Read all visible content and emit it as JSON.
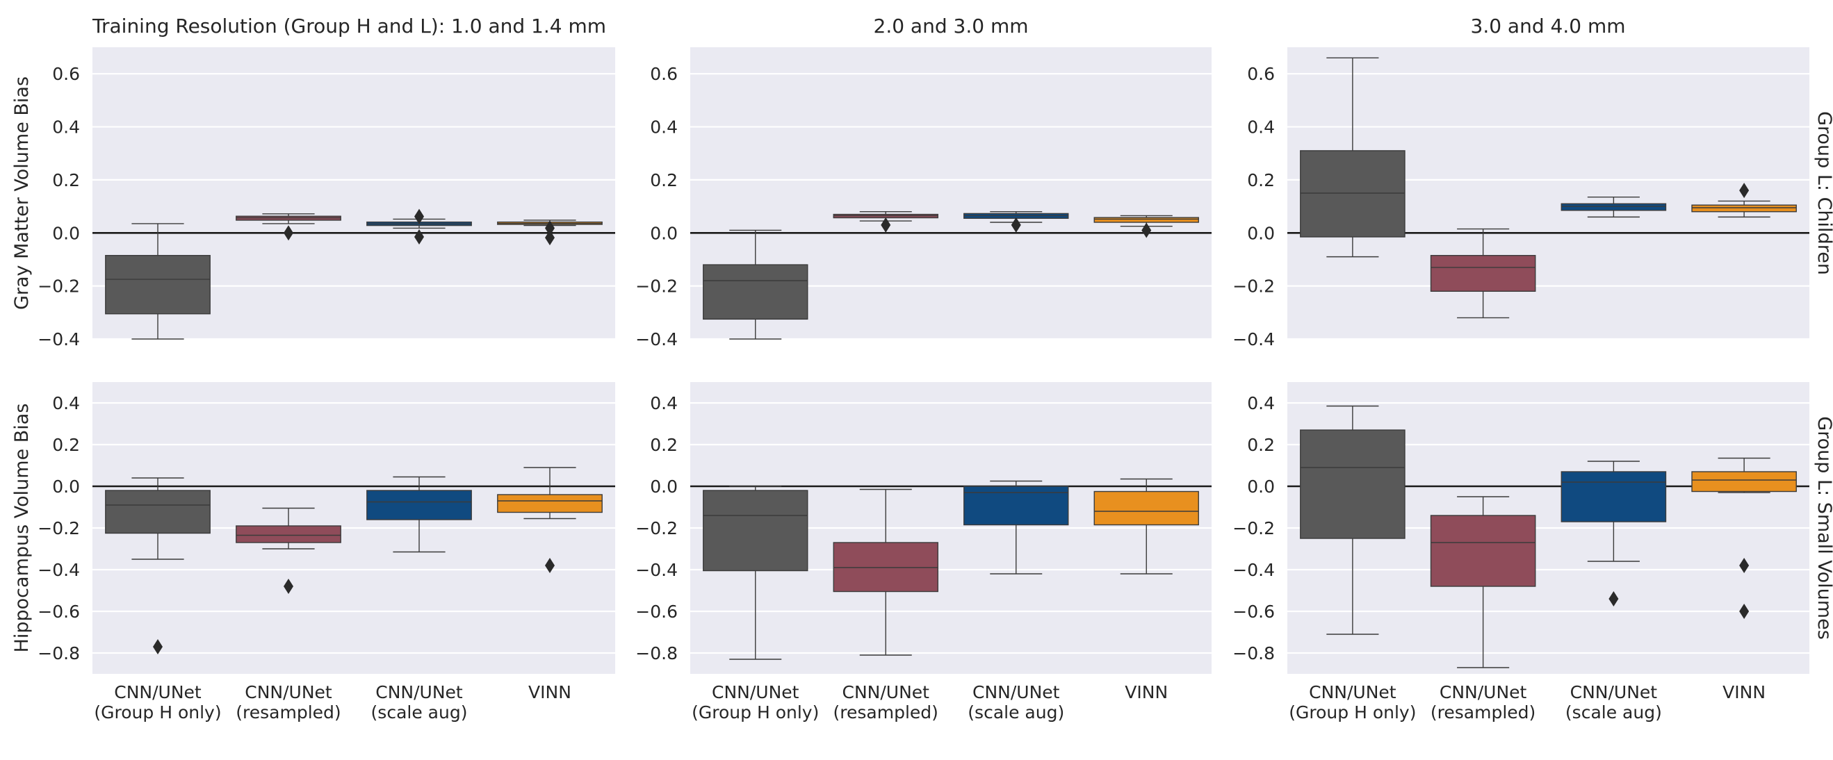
{
  "chart_data": {
    "type": "box",
    "columns": [
      "Training Resolution (Group H and L): 1.0 and 1.4 mm",
      "2.0 and 3.0 mm",
      "3.0 and 4.0 mm"
    ],
    "rows": [
      "Group L: Children",
      "Group L: Small Volumes"
    ],
    "row_ylabels": [
      "Gray Matter Volume Bias",
      "Hippocampus Volume Bias"
    ],
    "categories": [
      {
        "line1": "CNN/UNet",
        "line2": "(Group H only)"
      },
      {
        "line1": "CNN/UNet",
        "line2": "(resampled)"
      },
      {
        "line1": "CNN/UNet",
        "line2": "(scale aug)"
      },
      {
        "line1": "VINN",
        "line2": ""
      }
    ],
    "colors": [
      "#595959",
      "#8f4c5a",
      "#104a80",
      "#e8901f"
    ],
    "background_color": "#eaeaf2",
    "grid": true,
    "zero_line": true,
    "ylim_rows": [
      [
        -0.4,
        0.7
      ],
      [
        -0.9,
        0.5
      ]
    ],
    "yticks_rows": [
      [
        {
          "v": -0.4,
          "t": "−0.4"
        },
        {
          "v": -0.2,
          "t": "−0.2"
        },
        {
          "v": 0.0,
          "t": "0.0"
        },
        {
          "v": 0.2,
          "t": "0.2"
        },
        {
          "v": 0.4,
          "t": "0.4"
        },
        {
          "v": 0.6,
          "t": "0.6"
        }
      ],
      [
        {
          "v": -0.8,
          "t": "−0.8"
        },
        {
          "v": -0.6,
          "t": "−0.6"
        },
        {
          "v": -0.4,
          "t": "−0.4"
        },
        {
          "v": -0.2,
          "t": "−0.2"
        },
        {
          "v": 0.0,
          "t": "0.0"
        },
        {
          "v": 0.2,
          "t": "0.2"
        },
        {
          "v": 0.4,
          "t": "0.4"
        }
      ]
    ],
    "panels": [
      {
        "row": 0,
        "col": 0,
        "boxes": [
          {
            "wlo": -0.4,
            "q1": -0.305,
            "med": -0.175,
            "q3": -0.085,
            "whi": 0.035,
            "fliers": []
          },
          {
            "wlo": 0.035,
            "q1": 0.048,
            "med": 0.057,
            "q3": 0.063,
            "whi": 0.072,
            "fliers": [
              0.0
            ]
          },
          {
            "wlo": 0.018,
            "q1": 0.028,
            "med": 0.034,
            "q3": 0.041,
            "whi": 0.052,
            "fliers": [
              0.062,
              -0.015
            ]
          },
          {
            "wlo": 0.028,
            "q1": 0.032,
            "med": 0.036,
            "q3": 0.041,
            "whi": 0.048,
            "fliers": [
              0.018,
              -0.018
            ]
          }
        ]
      },
      {
        "row": 0,
        "col": 1,
        "boxes": [
          {
            "wlo": -0.4,
            "q1": -0.325,
            "med": -0.18,
            "q3": -0.12,
            "whi": 0.01,
            "fliers": []
          },
          {
            "wlo": 0.045,
            "q1": 0.057,
            "med": 0.065,
            "q3": 0.07,
            "whi": 0.08,
            "fliers": [
              0.03
            ]
          },
          {
            "wlo": 0.04,
            "q1": 0.055,
            "med": 0.065,
            "q3": 0.073,
            "whi": 0.08,
            "fliers": [
              0.03
            ]
          },
          {
            "wlo": 0.025,
            "q1": 0.04,
            "med": 0.052,
            "q3": 0.058,
            "whi": 0.065,
            "fliers": [
              0.01
            ]
          }
        ]
      },
      {
        "row": 0,
        "col": 2,
        "boxes": [
          {
            "wlo": -0.09,
            "q1": -0.015,
            "med": 0.15,
            "q3": 0.31,
            "whi": 0.66,
            "fliers": []
          },
          {
            "wlo": -0.32,
            "q1": -0.22,
            "med": -0.13,
            "q3": -0.085,
            "whi": 0.015,
            "fliers": []
          },
          {
            "wlo": 0.06,
            "q1": 0.085,
            "med": 0.1,
            "q3": 0.11,
            "whi": 0.135,
            "fliers": []
          },
          {
            "wlo": 0.06,
            "q1": 0.08,
            "med": 0.095,
            "q3": 0.105,
            "whi": 0.12,
            "fliers": [
              0.16
            ]
          }
        ]
      },
      {
        "row": 1,
        "col": 0,
        "boxes": [
          {
            "wlo": -0.35,
            "q1": -0.225,
            "med": -0.09,
            "q3": -0.02,
            "whi": 0.04,
            "fliers": [
              -0.77
            ]
          },
          {
            "wlo": -0.3,
            "q1": -0.27,
            "med": -0.235,
            "q3": -0.19,
            "whi": -0.105,
            "fliers": [
              -0.48
            ]
          },
          {
            "wlo": -0.315,
            "q1": -0.16,
            "med": -0.075,
            "q3": -0.02,
            "whi": 0.045,
            "fliers": []
          },
          {
            "wlo": -0.155,
            "q1": -0.125,
            "med": -0.07,
            "q3": -0.04,
            "whi": 0.09,
            "fliers": [
              -0.38
            ]
          }
        ]
      },
      {
        "row": 1,
        "col": 1,
        "boxes": [
          {
            "wlo": -0.83,
            "q1": -0.405,
            "med": -0.14,
            "q3": -0.02,
            "whi": 0.0,
            "fliers": []
          },
          {
            "wlo": -0.81,
            "q1": -0.505,
            "med": -0.39,
            "q3": -0.27,
            "whi": -0.015,
            "fliers": []
          },
          {
            "wlo": -0.42,
            "q1": -0.185,
            "med": -0.03,
            "q3": 0.0,
            "whi": 0.025,
            "fliers": []
          },
          {
            "wlo": -0.42,
            "q1": -0.185,
            "med": -0.12,
            "q3": -0.025,
            "whi": 0.035,
            "fliers": []
          }
        ]
      },
      {
        "row": 1,
        "col": 2,
        "boxes": [
          {
            "wlo": -0.71,
            "q1": -0.25,
            "med": 0.09,
            "q3": 0.27,
            "whi": 0.385,
            "fliers": []
          },
          {
            "wlo": -0.87,
            "q1": -0.48,
            "med": -0.27,
            "q3": -0.14,
            "whi": -0.05,
            "fliers": []
          },
          {
            "wlo": -0.36,
            "q1": -0.17,
            "med": 0.02,
            "q3": 0.07,
            "whi": 0.12,
            "fliers": [
              -0.54
            ]
          },
          {
            "wlo": -0.03,
            "q1": -0.025,
            "med": 0.03,
            "q3": 0.07,
            "whi": 0.135,
            "fliers": [
              -0.38,
              -0.6
            ]
          }
        ]
      }
    ]
  }
}
